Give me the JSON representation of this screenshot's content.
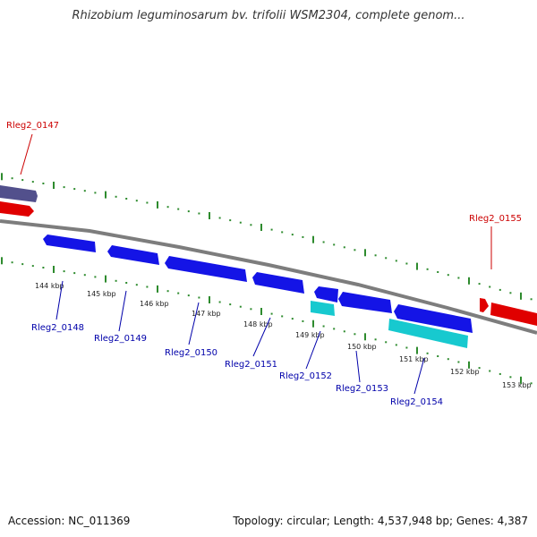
{
  "title": "Rhizobium leguminosarum bv. trifolii WSM2304, complete genom...",
  "accession": "Accession: NC_011369",
  "summary": "Topology: circular; Length: 4,537,948 bp; Genes: 4,387",
  "colors": {
    "backbone": "#7d7d7d",
    "tick": "#2e8b2e",
    "forward_gene": "#e00000",
    "reverse_gene": "#1414e6",
    "rna_gene": "#17c9cf",
    "pseudo_gene": "#52508c",
    "forward_label": "#cc0000",
    "reverse_label": "#0000aa"
  },
  "ticks": [
    "144 kbp",
    "145 kbp",
    "146 kbp",
    "147 kbp",
    "148 kbp",
    "149 kbp",
    "150 kbp",
    "151 kbp",
    "152 kbp",
    "153 kbp"
  ],
  "genes": [
    {
      "label": "Rleg2_0147",
      "strand": "+",
      "type": "cds"
    },
    {
      "label": "Rleg2_0148",
      "strand": "-",
      "type": "cds"
    },
    {
      "label": "Rleg2_0149",
      "strand": "-",
      "type": "cds"
    },
    {
      "label": "Rleg2_0150",
      "strand": "-",
      "type": "cds"
    },
    {
      "label": "Rleg2_0151",
      "strand": "-",
      "type": "cds"
    },
    {
      "label": "Rleg2_0152",
      "strand": "-",
      "type": "rna"
    },
    {
      "label": "Rleg2_0153",
      "strand": "-",
      "type": "cds"
    },
    {
      "label": "Rleg2_0154",
      "strand": "-",
      "type": "rna"
    },
    {
      "label": "Rleg2_0155",
      "strand": "+",
      "type": "cds"
    }
  ]
}
